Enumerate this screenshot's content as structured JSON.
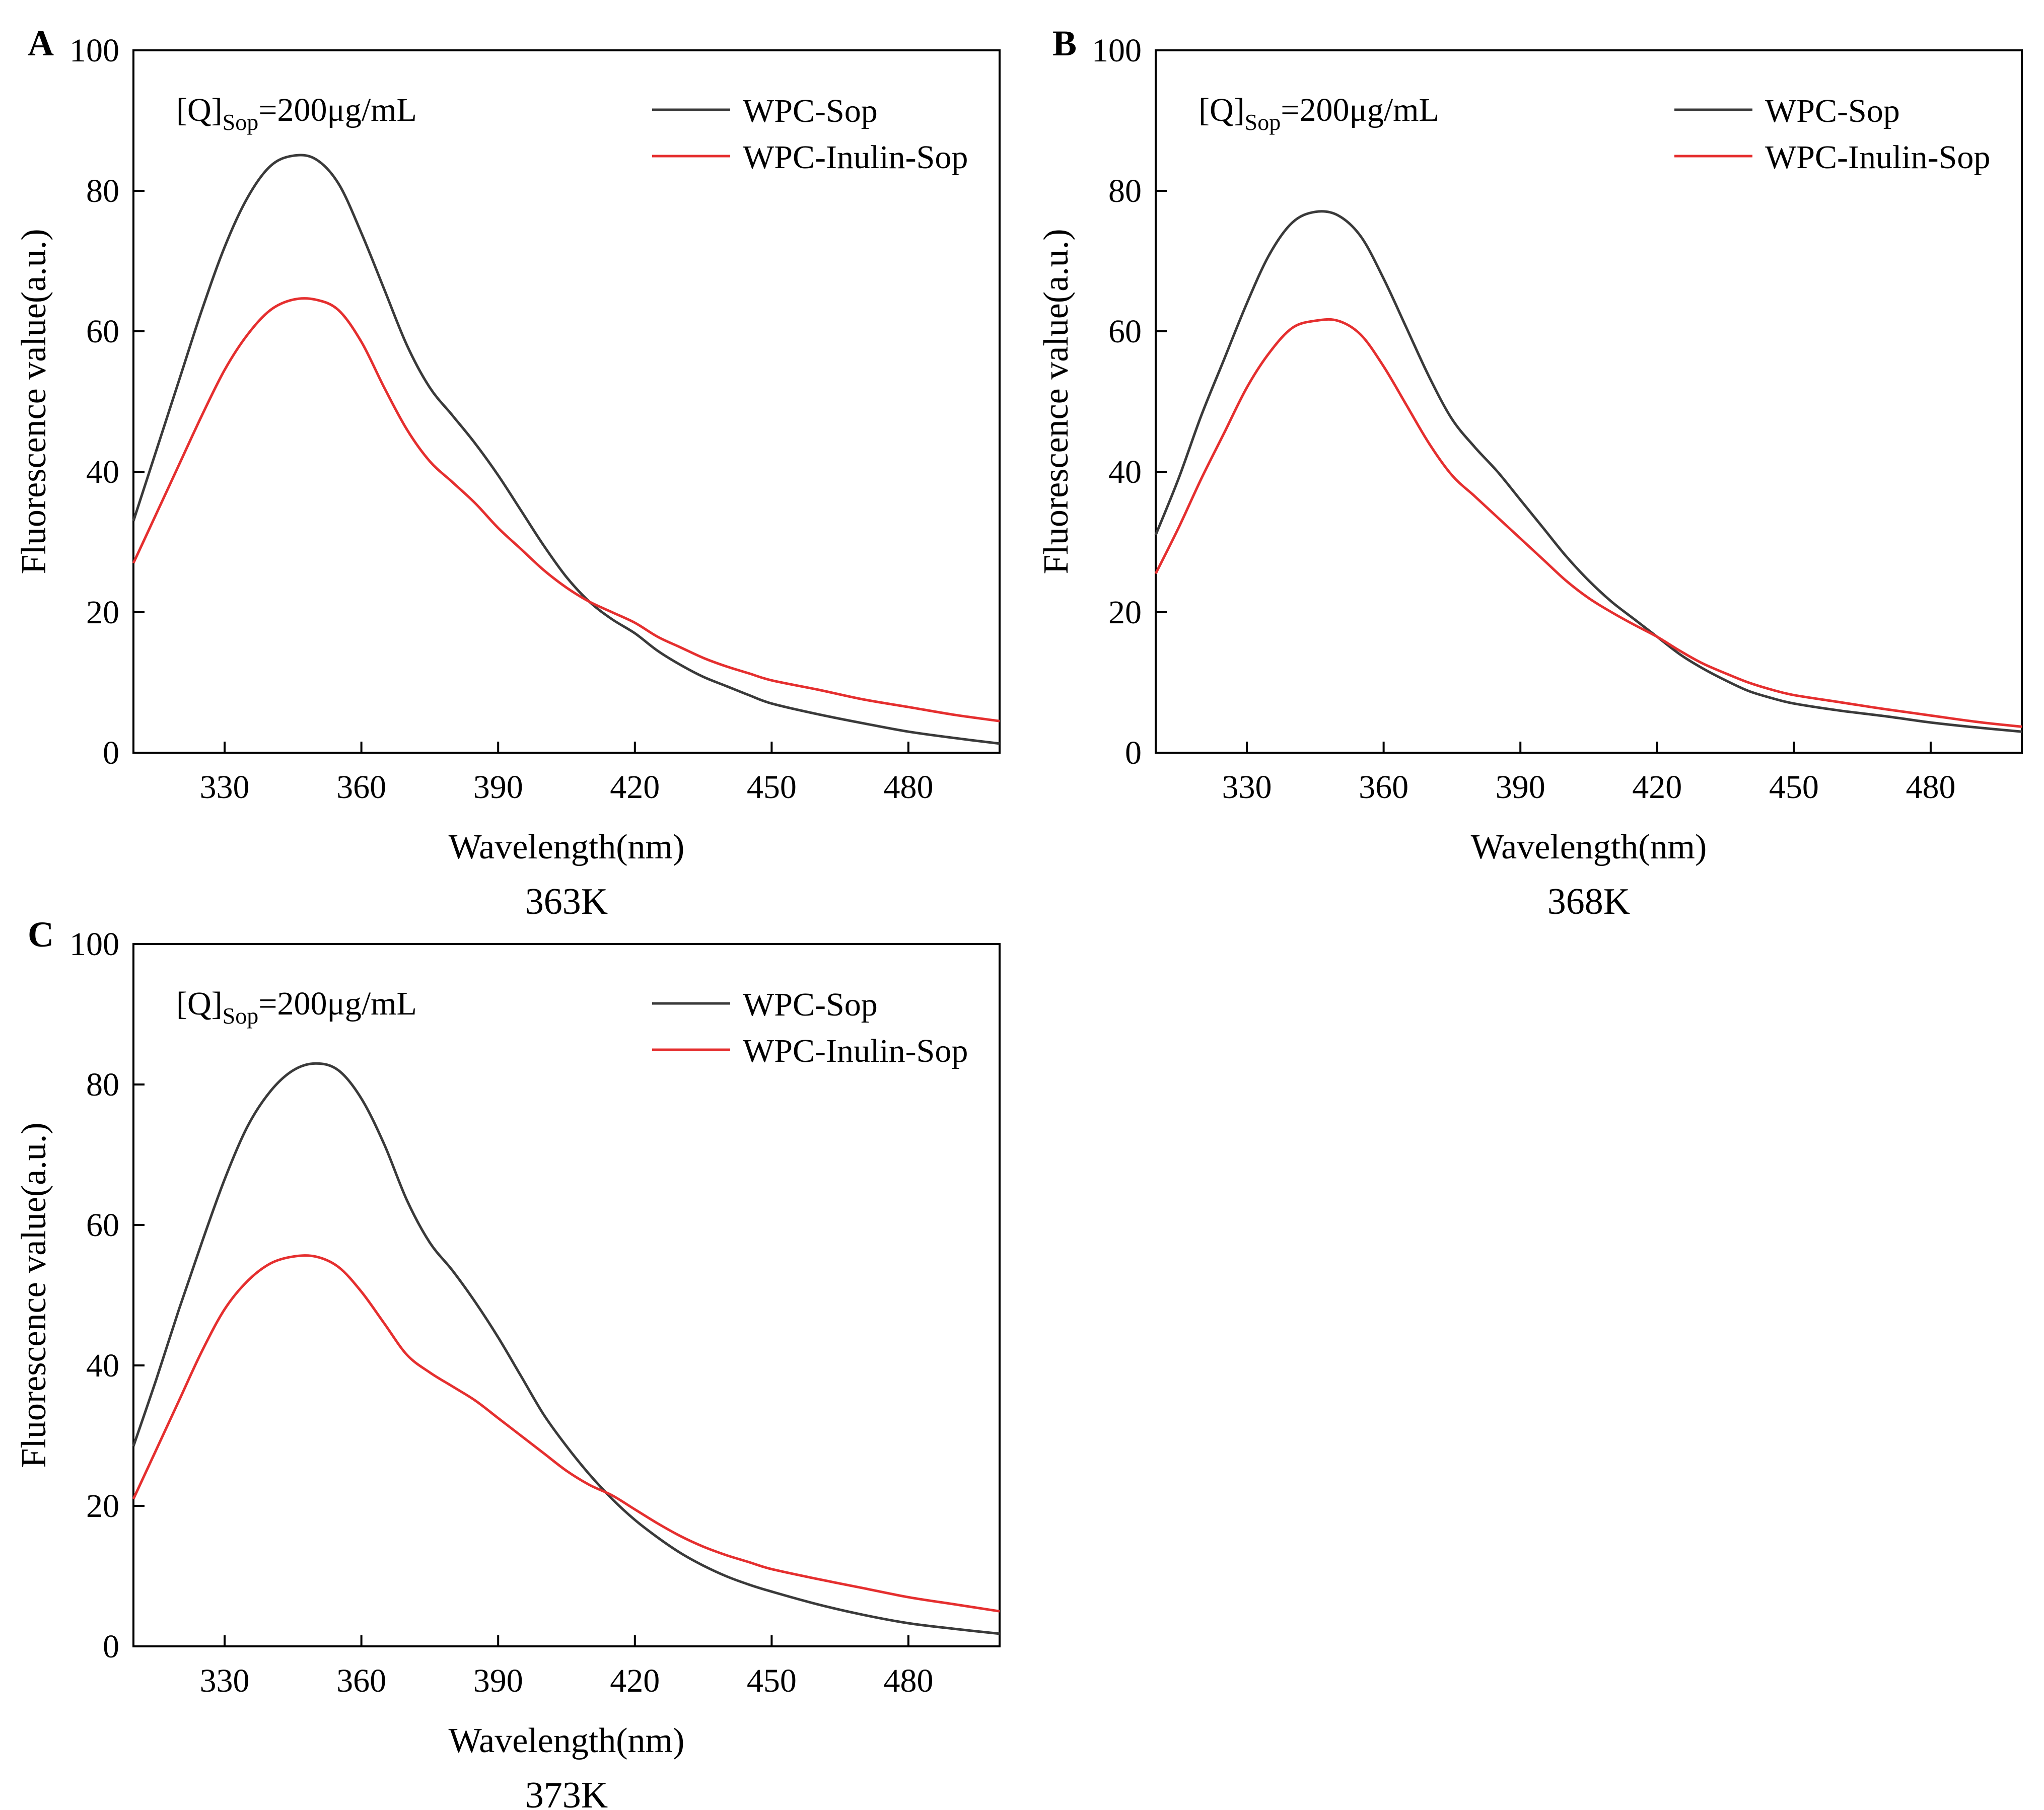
{
  "chart_data": [
    {
      "panel_label": "A",
      "type": "line",
      "caption": "363K",
      "xlabel": "Wavelength(nm)",
      "ylabel": "Fluorescence value(a.u.)",
      "xlim": [
        310,
        500
      ],
      "ylim": [
        0,
        100
      ],
      "xticks": [
        330,
        360,
        390,
        420,
        450,
        480
      ],
      "yticks": [
        0,
        20,
        40,
        60,
        80,
        100
      ],
      "annotation": {
        "prefix": "[Q]",
        "subscript": "Sop",
        "suffix": "=200μg/mL"
      },
      "legend_position": "top-right",
      "grid": false,
      "series": [
        {
          "name": "WPC-Sop",
          "color": "#3a3a3a",
          "x": [
            310,
            315,
            320,
            325,
            330,
            335,
            340,
            345,
            350,
            355,
            360,
            365,
            370,
            375,
            380,
            385,
            390,
            395,
            400,
            405,
            410,
            415,
            420,
            425,
            430,
            435,
            440,
            445,
            450,
            460,
            470,
            480,
            490,
            500
          ],
          "y": [
            33,
            43,
            53,
            63,
            72,
            79,
            83.5,
            85,
            84.5,
            81,
            74,
            66,
            58,
            52,
            48,
            44,
            39.5,
            34.5,
            29.5,
            25,
            21.5,
            19,
            17,
            14.5,
            12.5,
            10.8,
            9.5,
            8.2,
            7,
            5.5,
            4.2,
            3,
            2.1,
            1.3
          ]
        },
        {
          "name": "WPC-Inulin-Sop",
          "color": "#e52f2f",
          "x": [
            310,
            315,
            320,
            325,
            330,
            335,
            340,
            345,
            350,
            355,
            360,
            365,
            370,
            375,
            380,
            385,
            390,
            395,
            400,
            405,
            410,
            415,
            420,
            425,
            430,
            435,
            440,
            445,
            450,
            460,
            470,
            480,
            490,
            500
          ],
          "y": [
            27,
            34,
            41,
            48,
            54.5,
            59.5,
            63,
            64.5,
            64.5,
            63,
            58.5,
            52,
            46,
            41.5,
            38.5,
            35.5,
            32,
            29,
            26,
            23.5,
            21.5,
            20,
            18.5,
            16.5,
            15,
            13.5,
            12.3,
            11.3,
            10.3,
            9,
            7.6,
            6.5,
            5.4,
            4.5
          ]
        }
      ]
    },
    {
      "panel_label": "B",
      "type": "line",
      "caption": "368K",
      "xlabel": "Wavelength(nm)",
      "ylabel": "Fluorescence value(a.u.)",
      "xlim": [
        310,
        500
      ],
      "ylim": [
        0,
        100
      ],
      "xticks": [
        330,
        360,
        390,
        420,
        450,
        480
      ],
      "yticks": [
        0,
        20,
        40,
        60,
        80,
        100
      ],
      "annotation": {
        "prefix": "[Q]",
        "subscript": "Sop",
        "suffix": "=200μg/mL"
      },
      "legend_position": "top-right",
      "grid": false,
      "series": [
        {
          "name": "WPC-Sop",
          "color": "#3a3a3a",
          "x": [
            310,
            315,
            320,
            325,
            330,
            335,
            340,
            345,
            350,
            355,
            360,
            365,
            370,
            375,
            380,
            385,
            390,
            395,
            400,
            405,
            410,
            415,
            420,
            425,
            430,
            435,
            440,
            445,
            450,
            460,
            470,
            480,
            490,
            500
          ],
          "y": [
            31,
            39,
            48,
            56,
            64,
            71,
            75.5,
            77,
            76.5,
            73.5,
            67.5,
            60.5,
            53.5,
            47.5,
            43.5,
            40,
            36,
            32,
            28,
            24.5,
            21.5,
            19,
            16.5,
            14,
            12,
            10.3,
            8.8,
            7.8,
            7,
            6,
            5.2,
            4.3,
            3.6,
            3
          ]
        },
        {
          "name": "WPC-Inulin-Sop",
          "color": "#e52f2f",
          "x": [
            310,
            315,
            320,
            325,
            330,
            335,
            340,
            345,
            350,
            355,
            360,
            365,
            370,
            375,
            380,
            385,
            390,
            395,
            400,
            405,
            410,
            415,
            420,
            425,
            430,
            435,
            440,
            445,
            450,
            460,
            470,
            480,
            490,
            500
          ],
          "y": [
            25.5,
            32,
            39,
            45.5,
            52,
            57,
            60.5,
            61.5,
            61.5,
            59.5,
            55,
            49.5,
            44,
            39.5,
            36.5,
            33.5,
            30.5,
            27.5,
            24.5,
            22,
            20,
            18.2,
            16.5,
            14.5,
            12.7,
            11.3,
            10,
            9,
            8.2,
            7.2,
            6.2,
            5.3,
            4.4,
            3.7
          ]
        }
      ]
    },
    {
      "panel_label": "C",
      "type": "line",
      "caption": "373K",
      "xlabel": "Wavelength(nm)",
      "ylabel": "Fluorescence value(a.u.)",
      "xlim": [
        310,
        500
      ],
      "ylim": [
        0,
        100
      ],
      "xticks": [
        330,
        360,
        390,
        420,
        450,
        480
      ],
      "yticks": [
        0,
        20,
        40,
        60,
        80,
        100
      ],
      "annotation": {
        "prefix": "[Q]",
        "subscript": "Sop",
        "suffix": "=200μg/mL"
      },
      "legend_position": "top-right",
      "grid": false,
      "series": [
        {
          "name": "WPC-Sop",
          "color": "#3a3a3a",
          "x": [
            310,
            315,
            320,
            325,
            330,
            335,
            340,
            345,
            350,
            355,
            360,
            365,
            370,
            375,
            380,
            385,
            390,
            395,
            400,
            405,
            410,
            415,
            420,
            425,
            430,
            435,
            440,
            445,
            450,
            460,
            470,
            480,
            490,
            500
          ],
          "y": [
            28.5,
            38,
            48,
            57.5,
            66.5,
            74,
            79,
            82,
            83,
            82,
            78,
            71.5,
            63.5,
            57.5,
            53.5,
            49,
            44,
            38.5,
            33,
            28.5,
            24.5,
            21,
            18,
            15.5,
            13.3,
            11.5,
            10,
            8.8,
            7.8,
            6,
            4.5,
            3.3,
            2.5,
            1.8
          ]
        },
        {
          "name": "WPC-Inulin-Sop",
          "color": "#e52f2f",
          "x": [
            310,
            315,
            320,
            325,
            330,
            335,
            340,
            345,
            350,
            355,
            360,
            365,
            370,
            375,
            380,
            385,
            390,
            395,
            400,
            405,
            410,
            415,
            420,
            425,
            430,
            435,
            440,
            445,
            450,
            460,
            470,
            480,
            490,
            500
          ],
          "y": [
            21,
            28,
            35,
            42,
            48,
            52,
            54.5,
            55.5,
            55.5,
            54,
            50.5,
            46,
            41.5,
            39,
            37,
            35,
            32.5,
            30,
            27.5,
            25,
            23,
            21.5,
            19.5,
            17.5,
            15.7,
            14.2,
            13,
            12,
            11,
            9.6,
            8.3,
            7,
            6,
            5
          ]
        }
      ]
    }
  ]
}
